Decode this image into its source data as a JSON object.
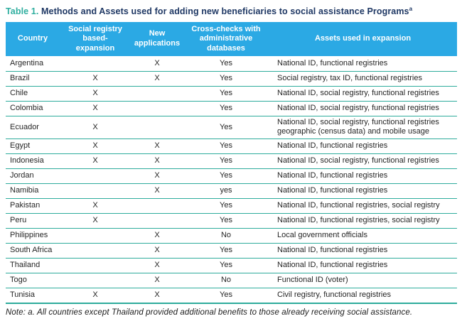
{
  "title": {
    "label": "Table 1.",
    "text": "Methods and Assets used for adding new beneficiaries to social assistance Programs",
    "superscript": "a"
  },
  "table": {
    "columns": [
      "Country",
      "Social registry based- expansion",
      "New applications",
      "Cross-checks with administrative databases",
      "Assets used in expansion"
    ],
    "rows": [
      {
        "country": "Argentina",
        "social_registry": "",
        "new_applications": "X",
        "cross_checks": "Yes",
        "assets": "National ID, functional registries"
      },
      {
        "country": "Brazil",
        "social_registry": "X",
        "new_applications": "X",
        "cross_checks": "Yes",
        "assets": "Social registry, tax ID, functional registries"
      },
      {
        "country": "Chile",
        "social_registry": "X",
        "new_applications": "",
        "cross_checks": "Yes",
        "assets": "National ID, social registry, functional registries"
      },
      {
        "country": "Colombia",
        "social_registry": "X",
        "new_applications": "",
        "cross_checks": "Yes",
        "assets": "National ID, social registry, functional registries"
      },
      {
        "country": "Ecuador",
        "social_registry": "X",
        "new_applications": "",
        "cross_checks": "Yes",
        "assets": "National ID, social registry, functional registries\ngeographic (census data) and mobile usage"
      },
      {
        "country": "Egypt",
        "social_registry": "X",
        "new_applications": "X",
        "cross_checks": "Yes",
        "assets": "National ID, functional registries"
      },
      {
        "country": "Indonesia",
        "social_registry": "X",
        "new_applications": "X",
        "cross_checks": "Yes",
        "assets": "National ID, social registry, functional registries"
      },
      {
        "country": "Jordan",
        "social_registry": "",
        "new_applications": "X",
        "cross_checks": "Yes",
        "assets": "National ID, functional registries"
      },
      {
        "country": "Namibia",
        "social_registry": "",
        "new_applications": "X",
        "cross_checks": "yes",
        "assets": "National ID, functional registries"
      },
      {
        "country": "Pakistan",
        "social_registry": "X",
        "new_applications": "",
        "cross_checks": "Yes",
        "assets": "National ID, functional registries, social registry"
      },
      {
        "country": "Peru",
        "social_registry": "X",
        "new_applications": "",
        "cross_checks": "Yes",
        "assets": "National ID, functional registries, social registry"
      },
      {
        "country": "Philippines",
        "social_registry": "",
        "new_applications": "X",
        "cross_checks": "No",
        "assets": "Local government officials"
      },
      {
        "country": "South Africa",
        "social_registry": "",
        "new_applications": "X",
        "cross_checks": "Yes",
        "assets": "National ID, functional registries"
      },
      {
        "country": "Thailand",
        "social_registry": "",
        "new_applications": "X",
        "cross_checks": "Yes",
        "assets": "National ID, functional registries"
      },
      {
        "country": "Togo",
        "social_registry": "",
        "new_applications": "X",
        "cross_checks": "No",
        "assets": "Functional ID (voter)"
      },
      {
        "country": "Tunisia",
        "social_registry": "X",
        "new_applications": "X",
        "cross_checks": "Yes",
        "assets": "Civil registry, functional registries"
      }
    ]
  },
  "note": "Note: a. All countries except Thailand provided additional benefits to those already receiving social assistance.",
  "colors": {
    "header_bg": "#2ba9e4",
    "accent_teal": "#2eac9c",
    "title_navy": "#1f3864",
    "header_text": "#ffffff",
    "body_text": "#252525"
  }
}
